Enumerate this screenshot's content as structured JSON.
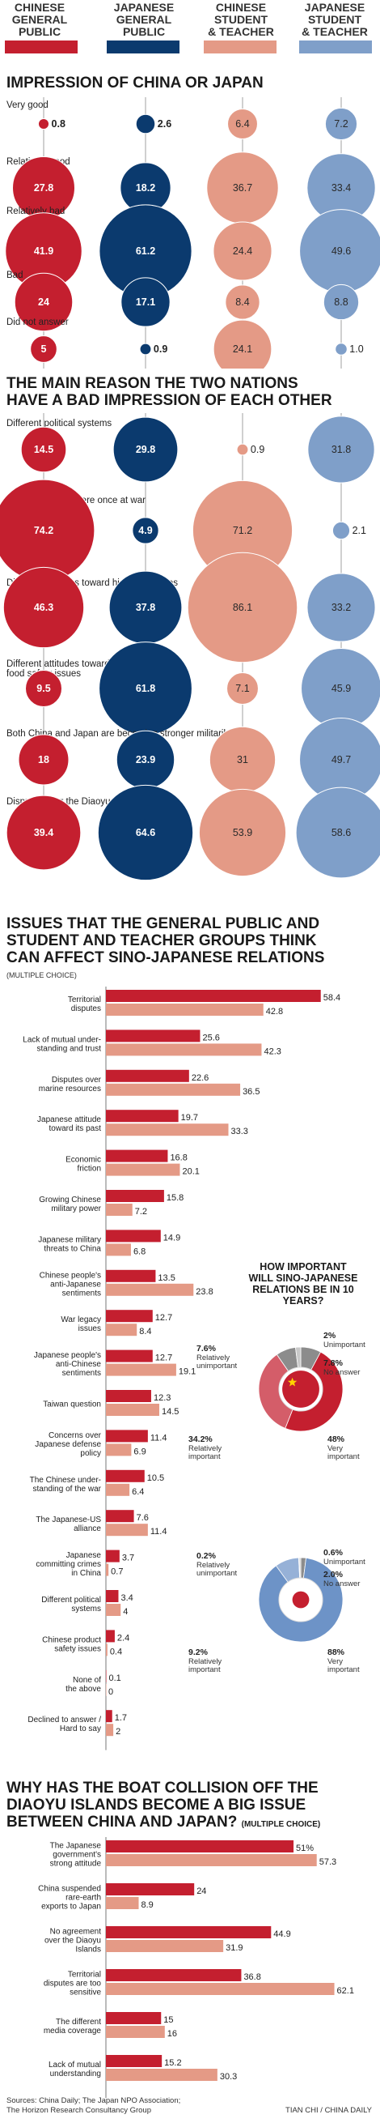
{
  "legend": {
    "items": [
      {
        "label": "CHINESE\nGENERAL\nPUBLIC",
        "color": "#c41f2f"
      },
      {
        "label": "JAPANESE\nGENERAL\nPUBLIC",
        "color": "#0b3a6e"
      },
      {
        "label": "CHINESE\nSTUDENT\n& TEACHER",
        "color": "#e49a86"
      },
      {
        "label": "JAPANESE\nSTUDENT\n& TEACHER",
        "color": "#7f9fc9"
      }
    ]
  },
  "colors": {
    "cn_public": "#c41f2f",
    "jp_public": "#0b3a6e",
    "cn_student": "#e49a86",
    "jp_student": "#7f9fc9",
    "bar_primary": "#c41f2f",
    "bar_secondary": "#e49a86",
    "pie_china": "#c41f2f",
    "pie_japan": "#6d93c7",
    "pie_gray_dark": "#8c8c8c",
    "pie_gray_light": "#c8c8c8"
  },
  "sections": {
    "s1_title": "IMPRESSION OF CHINA OR JAPAN",
    "s2_title": "THE MAIN REASON THE TWO NATIONS\nHAVE A BAD IMPRESSION OF EACH OTHER",
    "s3_title": "ISSUES THAT THE GENERAL PUBLIC AND\nSTUDENT AND TEACHER GROUPS THINK\nCAN AFFECT SINO-JAPANESE RELATIONS",
    "s3_sub": "(MULTIPLE CHOICE)",
    "s4_title_line1": "WHY HAS THE BOAT COLLISION OFF THE",
    "s4_title_line2": "DIAOYU ISLANDS BECOME A BIG ISSUE",
    "s4_title_line3": "BETWEEN CHINA AND JAPAN?",
    "s4_sub": "(MULTIPLE CHOICE)",
    "pie_title": "HOW IMPORTANT\nWILL SINO-JAPANESE\nRELATIONS BE IN 10\nYEARS?"
  },
  "footer": {
    "sources": "Sources: China Daily; The Japan NPO Association;\nThe Horizon Research Consultancy Group",
    "credit": "TIAN CHI / CHINA DAILY"
  },
  "chart_data": [
    {
      "type": "bubble",
      "title": "IMPRESSION OF CHINA OR JAPAN",
      "series": [
        "CHINESE GENERAL PUBLIC",
        "JAPANESE GENERAL PUBLIC",
        "CHINESE STUDENT & TEACHER",
        "JAPANESE STUDENT & TEACHER"
      ],
      "categories": [
        "Very good",
        "Relatively good",
        "Relatively bad",
        "Bad",
        "Did not answer"
      ],
      "values": [
        [
          0.8,
          2.6,
          6.4,
          7.2
        ],
        [
          27.8,
          18.2,
          36.7,
          33.4
        ],
        [
          41.9,
          61.2,
          24.4,
          49.6
        ],
        [
          24,
          17.1,
          8.4,
          8.8
        ],
        [
          5,
          0.9,
          24.1,
          1.0
        ]
      ],
      "value_labels": [
        [
          "0.8",
          "2.6",
          "6.4",
          "7.2"
        ],
        [
          "27.8",
          "18.2",
          "36.7",
          "33.4"
        ],
        [
          "41.9",
          "61.2",
          "24.4",
          "49.6"
        ],
        [
          "24",
          "17.1",
          "8.4",
          "8.8"
        ],
        [
          "5",
          "0.9",
          "24.1",
          "1.0"
        ]
      ]
    },
    {
      "type": "bubble",
      "title": "THE MAIN REASON THE TWO NATIONS HAVE A BAD IMPRESSION OF EACH OTHER",
      "series": [
        "CHINESE GENERAL PUBLIC",
        "JAPANESE GENERAL PUBLIC",
        "CHINESE STUDENT & TEACHER",
        "JAPANESE STUDENT & TEACHER"
      ],
      "categories": [
        "Different political systems",
        "The two nations were once at war",
        "Different attitudes toward historical issues",
        "Different attitudes toward\nfood safety issues",
        "Both China and Japan are becoming stronger militarily",
        "Disputes over the Diaoyu Islands"
      ],
      "values": [
        [
          14.5,
          29.8,
          0.9,
          31.8
        ],
        [
          74.2,
          4.9,
          71.2,
          2.1
        ],
        [
          46.3,
          37.8,
          86.1,
          33.2
        ],
        [
          9.5,
          61.8,
          7.1,
          45.9
        ],
        [
          18,
          23.9,
          31,
          49.7
        ],
        [
          39.4,
          64.6,
          53.9,
          58.6
        ]
      ],
      "value_labels": [
        [
          "14.5",
          "29.8",
          "0.9",
          "31.8"
        ],
        [
          "74.2",
          "4.9",
          "71.2",
          "2.1"
        ],
        [
          "46.3",
          "37.8",
          "86.1",
          "33.2"
        ],
        [
          "9.5",
          "61.8",
          "7.1",
          "45.9"
        ],
        [
          "18",
          "23.9",
          "31",
          "49.7"
        ],
        [
          "39.4",
          "64.6",
          "53.9",
          "58.6"
        ]
      ]
    },
    {
      "type": "bar",
      "orientation": "horizontal",
      "title": "ISSUES THAT THE GENERAL PUBLIC AND STUDENT AND TEACHER GROUPS THINK CAN AFFECT SINO-JAPANESE RELATIONS",
      "categories": [
        "Territorial\ndisputes",
        "Lack of mutual under-\nstanding and trust",
        "Disputes over\nmarine resources",
        "Japanese attitude\ntoward its past",
        "Economic\nfriction",
        "Growing Chinese\nmilitary power",
        "Japanese military\nthreats to China",
        "Chinese people's\nanti-Japanese\nsentiments",
        "War legacy\nissues",
        "Japanese people's\nanti-Chinese\nsentiments",
        "Taiwan question",
        "Concerns over\nJapanese defense\npolicy",
        "The Chinese under-\nstanding of the war",
        "The Japanese-US\nalliance",
        "Japanese\ncommitting crimes\nin China",
        "Different political\nsystems",
        "Chinese product\nsafety issues",
        "None of\nthe above",
        "Declined to answer /\nHard to say"
      ],
      "series": [
        {
          "values": [
            58.4,
            25.6,
            22.6,
            19.7,
            16.8,
            15.8,
            14.9,
            13.5,
            12.7,
            12.7,
            12.3,
            11.4,
            10.5,
            7.6,
            3.7,
            3.4,
            2.4,
            0.1,
            1.7
          ]
        },
        {
          "values": [
            42.8,
            42.3,
            36.5,
            33.3,
            20.1,
            7.2,
            6.8,
            23.8,
            8.4,
            19.1,
            14.5,
            6.9,
            6.4,
            11.4,
            0.7,
            4,
            0.4,
            0,
            2
          ]
        }
      ],
      "label_1": [
        "58.4",
        "25.6",
        "22.6",
        "19.7",
        "16.8",
        "15.8",
        "14.9",
        "13.5",
        "12.7",
        "12.7",
        "12.3",
        "11.4",
        "10.5",
        "7.6",
        "3.7",
        "3.4",
        "2.4",
        "0.1",
        "1.7"
      ],
      "label_2": [
        "42.8",
        "42.3",
        "36.5",
        "33.3",
        "20.1",
        "7.2",
        "6.8",
        "23.8",
        "8.4",
        "19.1",
        "14.5",
        "6.9",
        "6.4",
        "11.4",
        "0.7",
        "4",
        "0.4",
        "0",
        "2"
      ]
    },
    {
      "type": "pie",
      "title": "HOW IMPORTANT WILL SINO-JAPANESE RELATIONS BE IN 10 YEARS?",
      "name": "China",
      "slices": [
        {
          "label": "Very\nimportant",
          "value": 48,
          "display": "48%"
        },
        {
          "label": "Relatively\nimportant",
          "value": 34.2,
          "display": "34.2%"
        },
        {
          "label": "Relatively\nunimportant",
          "value": 7.6,
          "display": "7.6%"
        },
        {
          "label": "Unimportant",
          "value": 2,
          "display": "2%"
        },
        {
          "label": "No answer",
          "value": 7.8,
          "display": "7.8%"
        }
      ]
    },
    {
      "type": "pie",
      "title": "HOW IMPORTANT WILL SINO-JAPANESE RELATIONS BE IN 10 YEARS?",
      "name": "Japan",
      "slices": [
        {
          "label": "Very\nimportant",
          "value": 88,
          "display": "88%"
        },
        {
          "label": "Relatively\nimportant",
          "value": 9.2,
          "display": "9.2%"
        },
        {
          "label": "Relatively\nunimportant",
          "value": 0.2,
          "display": "0.2%"
        },
        {
          "label": "Unimportant",
          "value": 0.6,
          "display": "0.6%"
        },
        {
          "label": "No answer",
          "value": 2.0,
          "display": "2.0%"
        }
      ]
    },
    {
      "type": "bar",
      "orientation": "horizontal",
      "title": "WHY HAS THE BOAT COLLISION OFF THE DIAOYU ISLANDS BECOME A BIG ISSUE BETWEEN CHINA AND JAPAN?",
      "categories": [
        "The Japanese\ngovernment's\nstrong attitude",
        "China suspended\nrare-earth\nexports to Japan",
        "No agreement\nover the Diaoyu\nIslands",
        "Territorial\ndisputes are too\nsensitive",
        "The different\nmedia coverage",
        "Lack of mutual\nunderstanding"
      ],
      "series": [
        {
          "values": [
            51,
            24,
            44.9,
            36.8,
            15,
            15.2
          ]
        },
        {
          "values": [
            57.3,
            8.9,
            31.9,
            62.1,
            16,
            30.3
          ]
        }
      ],
      "label_1": [
        "51%",
        "24",
        "44.9",
        "36.8",
        "15",
        "15.2"
      ],
      "label_2": [
        "57.3",
        "8.9",
        "31.9",
        "62.1",
        "16",
        "30.3"
      ]
    }
  ]
}
